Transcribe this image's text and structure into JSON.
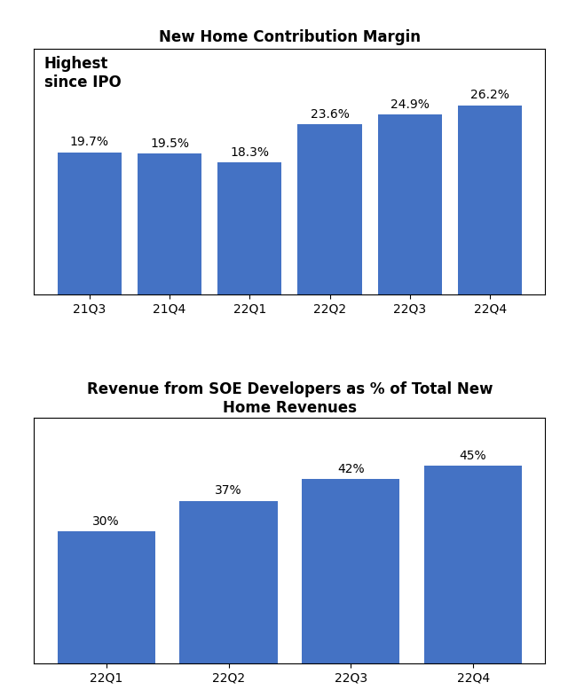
{
  "chart_data": [
    {
      "type": "bar",
      "title": "New Home Contribution Margin",
      "categories": [
        "21Q3",
        "21Q4",
        "22Q1",
        "22Q2",
        "22Q3",
        "22Q4"
      ],
      "values": [
        19.7,
        19.5,
        18.3,
        23.6,
        24.9,
        26.2
      ],
      "value_labels": [
        "19.7%",
        "19.5%",
        "18.3%",
        "23.6%",
        "24.9%",
        "26.2%"
      ],
      "data_labels": true,
      "color": "#4472C4",
      "annotation": "Highest\nsince IPO",
      "ylim": [
        0,
        34
      ],
      "yticks": [],
      "tick_labels": "x"
    },
    {
      "type": "bar",
      "title": "Revenue from SOE Developers as % of Total New\nHome Revenues",
      "categories": [
        "22Q1",
        "22Q2",
        "22Q3",
        "22Q4"
      ],
      "values": [
        30,
        37,
        42,
        45
      ],
      "value_labels": [
        "30%",
        "37%",
        "42%",
        "45%"
      ],
      "data_labels": true,
      "color": "#4472C4",
      "ylim": [
        0,
        56
      ],
      "yticks": [],
      "tick_labels": "x"
    }
  ]
}
